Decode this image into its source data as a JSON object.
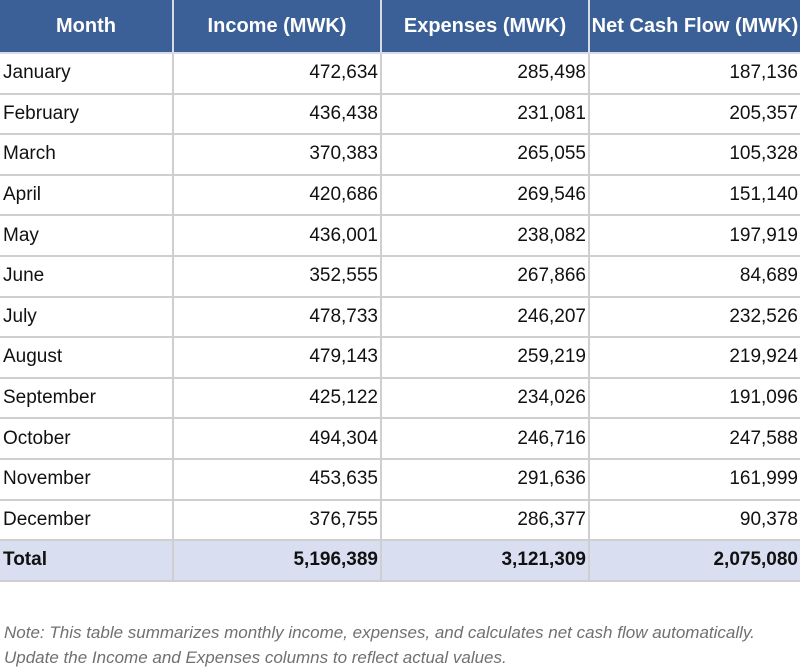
{
  "table": {
    "header": [
      "Month",
      "Income (MWK)",
      "Expenses (MWK)",
      "Net Cash Flow (MWK)"
    ],
    "rows": [
      [
        "January",
        "472,634",
        "285,498",
        "187,136"
      ],
      [
        "February",
        "436,438",
        "231,081",
        "205,357"
      ],
      [
        "March",
        "370,383",
        "265,055",
        "105,328"
      ],
      [
        "April",
        "420,686",
        "269,546",
        "151,140"
      ],
      [
        "May",
        "436,001",
        "238,082",
        "197,919"
      ],
      [
        "June",
        "352,555",
        "267,866",
        "84,689"
      ],
      [
        "July",
        "478,733",
        "246,207",
        "232,526"
      ],
      [
        "August",
        "479,143",
        "259,219",
        "219,924"
      ],
      [
        "September",
        "425,122",
        "234,026",
        "191,096"
      ],
      [
        "October",
        "494,304",
        "246,716",
        "247,588"
      ],
      [
        "November",
        "453,635",
        "291,636",
        "161,999"
      ],
      [
        "December",
        "376,755",
        "286,377",
        "90,378"
      ]
    ],
    "total": [
      "Total",
      "5,196,389",
      "3,121,309",
      "2,075,080"
    ]
  },
  "note": "Note: This table summarizes monthly income, expenses, and calculates net cash flow automatically. Update the Income and Expenses columns to reflect actual values."
}
